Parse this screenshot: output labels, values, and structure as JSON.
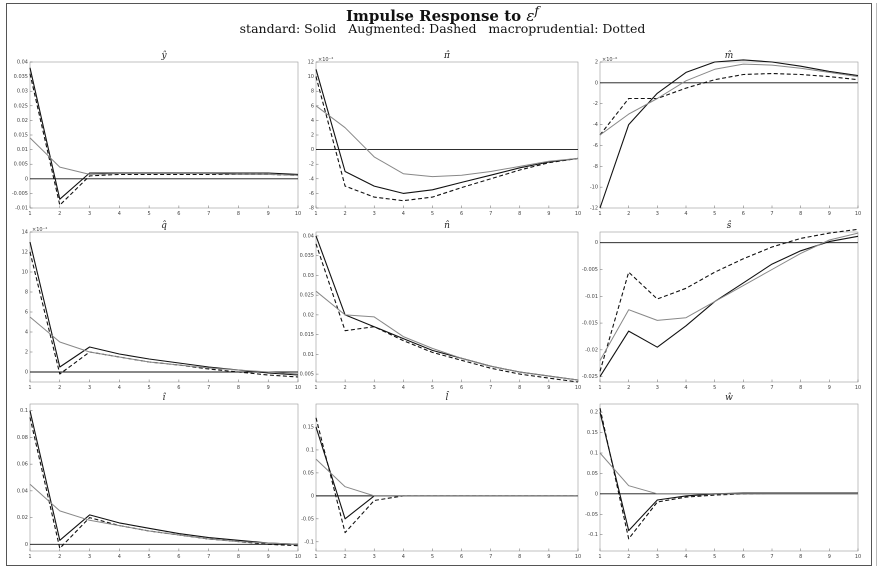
{
  "header": {
    "title": "Impulse Response to ",
    "title_symbol": "ε",
    "title_superscript": "f",
    "subtitle": "standard: Solid   Augmented: Dashed   macroprudential: Dotted"
  },
  "chart_data": [
    {
      "type": "line",
      "title": "ŷ",
      "x": [
        1,
        2,
        3,
        4,
        5,
        6,
        7,
        8,
        9,
        10
      ],
      "ylim": [
        -0.01,
        0.04
      ],
      "yticks": [
        -0.01,
        -0.005,
        0,
        0.005,
        0.01,
        0.015,
        0.02,
        0.025,
        0.03,
        0.035,
        0.04
      ],
      "ytick_labels": [
        "-0.01",
        "-0.005",
        "0",
        "0.005",
        "0.01",
        "0.015",
        "0.02",
        "0.025",
        "0.03",
        "0.035",
        "0.04"
      ],
      "multiplier": "",
      "series": [
        {
          "style": "solid",
          "values": [
            0.038,
            -0.007,
            0.002,
            0.002,
            0.002,
            0.002,
            0.002,
            0.002,
            0.002,
            0.0015
          ]
        },
        {
          "style": "dashed",
          "values": [
            0.036,
            -0.009,
            0.001,
            0.0015,
            0.0015,
            0.0015,
            0.0015,
            0.0015,
            0.0015,
            0.0012
          ]
        },
        {
          "style": "dotted",
          "values": [
            0.014,
            0.004,
            0.0015,
            0.0018,
            0.0018,
            0.0018,
            0.0018,
            0.0015,
            0.0015,
            0.0012
          ]
        }
      ]
    },
    {
      "type": "line",
      "title": "π̂",
      "x": [
        1,
        2,
        3,
        4,
        5,
        6,
        7,
        8,
        9,
        10
      ],
      "ylim": [
        -8,
        12
      ],
      "yticks": [
        -8,
        -6,
        -4,
        -2,
        0,
        2,
        4,
        6,
        8,
        10,
        12
      ],
      "ytick_labels": [
        "-8",
        "-6",
        "-4",
        "-2",
        "0",
        "2",
        "4",
        "6",
        "8",
        "10",
        "12"
      ],
      "multiplier": "×10⁻⁴",
      "series": [
        {
          "style": "solid",
          "values": [
            11,
            -3,
            -5,
            -6,
            -5.5,
            -4.5,
            -3.5,
            -2.5,
            -1.7,
            -1.2
          ]
        },
        {
          "style": "dashed",
          "values": [
            10,
            -5,
            -6.5,
            -7,
            -6.5,
            -5.2,
            -4,
            -2.8,
            -1.8,
            -1.2
          ]
        },
        {
          "style": "dotted",
          "values": [
            6,
            3,
            -1,
            -3.3,
            -3.7,
            -3.5,
            -3,
            -2.3,
            -1.6,
            -1.2
          ]
        }
      ]
    },
    {
      "type": "line",
      "title": "m̂",
      "x": [
        1,
        2,
        3,
        4,
        5,
        6,
        7,
        8,
        9,
        10
      ],
      "ylim": [
        -12,
        2
      ],
      "yticks": [
        -12,
        -10,
        -8,
        -6,
        -4,
        -2,
        0,
        2
      ],
      "ytick_labels": [
        "-12",
        "-10",
        "-8",
        "-6",
        "-4",
        "-2",
        "0",
        "2"
      ],
      "multiplier": "×10⁻⁶",
      "series": [
        {
          "style": "solid",
          "values": [
            -12,
            -4,
            -1,
            1,
            2,
            2.2,
            2,
            1.6,
            1.1,
            0.7
          ]
        },
        {
          "style": "dashed",
          "values": [
            -5,
            -1.5,
            -1.5,
            -0.5,
            0.3,
            0.8,
            0.9,
            0.8,
            0.6,
            0.3
          ]
        },
        {
          "style": "dotted",
          "values": [
            -5,
            -3,
            -1.5,
            0.2,
            1.3,
            1.8,
            1.7,
            1.4,
            1,
            0.6
          ]
        }
      ]
    },
    {
      "type": "line",
      "title": "q̂",
      "x": [
        1,
        2,
        3,
        4,
        5,
        6,
        7,
        8,
        9,
        10
      ],
      "ylim": [
        -1,
        14
      ],
      "yticks": [
        0,
        2,
        4,
        6,
        8,
        10,
        12,
        14
      ],
      "ytick_labels": [
        "0",
        "2",
        "4",
        "6",
        "8",
        "10",
        "12",
        "14"
      ],
      "multiplier": "×10⁻⁴",
      "series": [
        {
          "style": "solid",
          "values": [
            13,
            0.5,
            2.5,
            1.8,
            1.3,
            0.9,
            0.5,
            0.2,
            -0.1,
            -0.3
          ]
        },
        {
          "style": "dashed",
          "values": [
            12,
            -0.2,
            2,
            1.5,
            1,
            0.7,
            0.3,
            0,
            -0.3,
            -0.5
          ]
        },
        {
          "style": "dotted",
          "values": [
            5.5,
            3,
            2,
            1.5,
            1,
            0.7,
            0.4,
            0.2,
            0,
            -0.2
          ]
        }
      ]
    },
    {
      "type": "line",
      "title": "n̂",
      "x": [
        1,
        2,
        3,
        4,
        5,
        6,
        7,
        8,
        9,
        10
      ],
      "ylim": [
        0.003,
        0.041
      ],
      "yticks": [
        0.005,
        0.01,
        0.015,
        0.02,
        0.025,
        0.03,
        0.035,
        0.04
      ],
      "ytick_labels": [
        "0.005",
        "0.01",
        "0.015",
        "0.02",
        "0.025",
        "0.03",
        "0.035",
        "0.04"
      ],
      "multiplier": "",
      "series": [
        {
          "style": "solid",
          "values": [
            0.04,
            0.02,
            0.017,
            0.014,
            0.011,
            0.009,
            0.007,
            0.0055,
            0.0045,
            0.0035
          ]
        },
        {
          "style": "dashed",
          "values": [
            0.038,
            0.016,
            0.017,
            0.0135,
            0.0105,
            0.0085,
            0.0065,
            0.005,
            0.004,
            0.003
          ]
        },
        {
          "style": "dotted",
          "values": [
            0.026,
            0.02,
            0.0195,
            0.0145,
            0.0115,
            0.009,
            0.007,
            0.0055,
            0.0045,
            0.0035
          ]
        }
      ]
    },
    {
      "type": "line",
      "title": "ŝ",
      "x": [
        1,
        2,
        3,
        4,
        5,
        6,
        7,
        8,
        9,
        10
      ],
      "ylim": [
        -0.026,
        0.002
      ],
      "yticks": [
        -0.025,
        -0.02,
        -0.015,
        -0.01,
        -0.005,
        0
      ],
      "ytick_labels": [
        "-0.025",
        "-0.02",
        "-0.015",
        "-0.01",
        "-0.005",
        "0"
      ],
      "multiplier": "",
      "series": [
        {
          "style": "solid",
          "values": [
            -0.025,
            -0.0165,
            -0.0195,
            -0.0155,
            -0.011,
            -0.0075,
            -0.004,
            -0.0015,
            0.0002,
            0.0012
          ]
        },
        {
          "style": "dashed",
          "values": [
            -0.024,
            -0.0055,
            -0.0105,
            -0.0085,
            -0.0055,
            -0.003,
            -0.0008,
            0.0008,
            0.0018,
            0.0025
          ]
        },
        {
          "style": "dotted",
          "values": [
            -0.022,
            -0.0125,
            -0.0145,
            -0.014,
            -0.011,
            -0.008,
            -0.005,
            -0.002,
            0.0005,
            0.0018
          ]
        }
      ]
    },
    {
      "type": "line",
      "title": "î",
      "x": [
        1,
        2,
        3,
        4,
        5,
        6,
        7,
        8,
        9,
        10
      ],
      "ylim": [
        -0.005,
        0.105
      ],
      "yticks": [
        0,
        0.02,
        0.04,
        0.06,
        0.08,
        0.1
      ],
      "ytick_labels": [
        "0",
        "0.02",
        "0.04",
        "0.06",
        "0.08",
        "0.1"
      ],
      "multiplier": "",
      "series": [
        {
          "style": "solid",
          "values": [
            0.1,
            0.003,
            0.022,
            0.016,
            0.012,
            0.008,
            0.005,
            0.003,
            0.001,
            0
          ]
        },
        {
          "style": "dashed",
          "values": [
            0.095,
            -0.003,
            0.02,
            0.014,
            0.01,
            0.007,
            0.004,
            0.002,
            0,
            -0.001
          ]
        },
        {
          "style": "dotted",
          "values": [
            0.045,
            0.025,
            0.018,
            0.014,
            0.01,
            0.007,
            0.004,
            0.002,
            0.001,
            0
          ]
        }
      ]
    },
    {
      "type": "line",
      "title": "l̂",
      "x": [
        1,
        2,
        3,
        4,
        5,
        6,
        7,
        8,
        9,
        10
      ],
      "ylim": [
        -0.12,
        0.2
      ],
      "yticks": [
        -0.1,
        -0.05,
        0,
        0.05,
        0.1,
        0.15
      ],
      "ytick_labels": [
        "-0.1",
        "-0.05",
        "0",
        "0.05",
        "0.1",
        "0.15"
      ],
      "multiplier": "",
      "series": [
        {
          "style": "solid",
          "values": [
            0.15,
            -0.05,
            0,
            0,
            0,
            0,
            0,
            0,
            0,
            0
          ]
        },
        {
          "style": "dashed",
          "values": [
            0.17,
            -0.08,
            -0.01,
            0,
            0,
            0,
            0,
            0,
            0,
            0
          ]
        },
        {
          "style": "dotted",
          "values": [
            0.08,
            0.02,
            0,
            0,
            0,
            0,
            0,
            0,
            0,
            0
          ]
        }
      ]
    },
    {
      "type": "line",
      "title": "ŵ",
      "x": [
        1,
        2,
        3,
        4,
        5,
        6,
        7,
        8,
        9,
        10
      ],
      "ylim": [
        -0.14,
        0.22
      ],
      "yticks": [
        -0.1,
        -0.05,
        0,
        0.05,
        0.1,
        0.15,
        0.2
      ],
      "ytick_labels": [
        "-0.1",
        "-0.05",
        "0",
        "0.05",
        "0.1",
        "0.15",
        "0.2"
      ],
      "multiplier": "",
      "series": [
        {
          "style": "solid",
          "values": [
            0.2,
            -0.09,
            -0.015,
            -0.005,
            0,
            0.002,
            0.002,
            0.002,
            0.002,
            0.002
          ]
        },
        {
          "style": "dashed",
          "values": [
            0.21,
            -0.11,
            -0.02,
            -0.008,
            -0.003,
            0,
            0.001,
            0.001,
            0.001,
            0.001
          ]
        },
        {
          "style": "dotted",
          "values": [
            0.1,
            0.02,
            0,
            0,
            0,
            0,
            0,
            0,
            0,
            0
          ]
        }
      ]
    }
  ]
}
